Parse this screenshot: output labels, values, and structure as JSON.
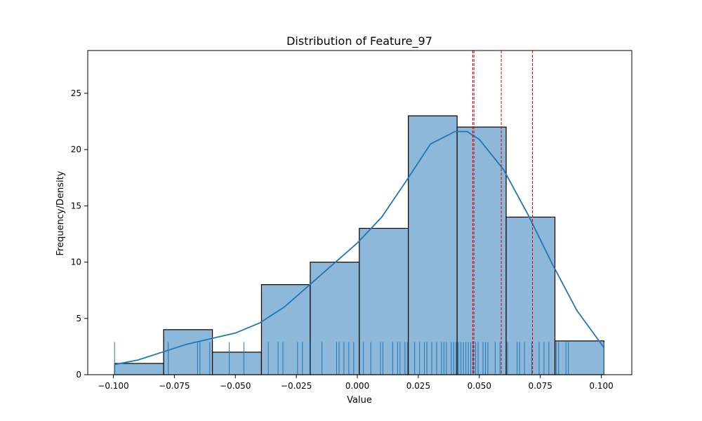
{
  "chart_data": {
    "type": "bar",
    "title": "Distribution of Feature_97",
    "xlabel": "Value",
    "ylabel": "Frequency/Density",
    "xlim": [
      -0.1105,
      0.1125
    ],
    "ylim": [
      0,
      28.8
    ],
    "xticks": [
      -0.1,
      -0.075,
      -0.05,
      -0.025,
      0.0,
      0.025,
      0.05,
      0.075,
      0.1
    ],
    "xtick_labels": [
      "−0.100",
      "−0.075",
      "−0.050",
      "−0.025",
      "0.000",
      "0.025",
      "0.050",
      "0.075",
      "0.100"
    ],
    "yticks": [
      0,
      5,
      10,
      15,
      20,
      25
    ],
    "ytick_labels": [
      "0",
      "5",
      "10",
      "15",
      "20",
      "25"
    ],
    "grid": false,
    "histogram": {
      "bin_edges": [
        -0.0995,
        -0.0794,
        -0.0594,
        -0.0393,
        -0.0193,
        0.0008,
        0.0209,
        0.0409,
        0.061,
        0.081,
        0.1011
      ],
      "counts": [
        1,
        4,
        2,
        8,
        10,
        13,
        23,
        22,
        14,
        3
      ],
      "color": "#8db8da",
      "edge_color": "#000000"
    },
    "kde": {
      "color": "#1f77b4",
      "points": [
        [
          -0.0995,
          0.9
        ],
        [
          -0.09,
          1.3
        ],
        [
          -0.08,
          2.0
        ],
        [
          -0.07,
          2.7
        ],
        [
          -0.06,
          3.2
        ],
        [
          -0.05,
          3.7
        ],
        [
          -0.04,
          4.6
        ],
        [
          -0.03,
          6.0
        ],
        [
          -0.02,
          7.9
        ],
        [
          -0.01,
          9.8
        ],
        [
          0.0,
          11.7
        ],
        [
          0.01,
          14.0
        ],
        [
          0.02,
          17.2
        ],
        [
          0.03,
          20.5
        ],
        [
          0.04,
          21.6
        ],
        [
          0.045,
          21.6
        ],
        [
          0.05,
          20.9
        ],
        [
          0.06,
          18.2
        ],
        [
          0.07,
          14.2
        ],
        [
          0.08,
          9.8
        ],
        [
          0.09,
          5.7
        ],
        [
          0.1011,
          2.4
        ]
      ]
    },
    "rug": {
      "color": "#1f77b4",
      "height": 2.9,
      "values": [
        -0.0995,
        -0.0775,
        -0.0655,
        -0.0645,
        -0.0605,
        -0.0525,
        -0.0465,
        -0.0365,
        -0.0325,
        -0.0305,
        -0.0245,
        -0.0225,
        -0.0195,
        -0.0145,
        -0.0085,
        -0.0075,
        -0.0055,
        -0.0035,
        -0.0015,
        0.0025,
        0.0055,
        0.0095,
        0.0105,
        0.0145,
        0.0165,
        0.0175,
        0.0195,
        0.0205,
        0.0235,
        0.0255,
        0.0275,
        0.0285,
        0.0305,
        0.0325,
        0.0345,
        0.0355,
        0.0365,
        0.0385,
        0.0395,
        0.0405,
        0.0415,
        0.0425,
        0.0435,
        0.0445,
        0.0455,
        0.0465,
        0.0475,
        0.0485,
        0.0495,
        0.0515,
        0.0525,
        0.0535,
        0.0565,
        0.0585,
        0.0615,
        0.0655,
        0.0665,
        0.0685,
        0.0715,
        0.0745,
        0.0765,
        0.0785,
        0.0815,
        0.0825,
        0.0855,
        0.0865,
        0.1011
      ]
    },
    "vlines": {
      "color": "#e00000",
      "style": "dashed",
      "values": [
        0.0473,
        0.0478,
        0.059,
        0.0718
      ]
    }
  }
}
